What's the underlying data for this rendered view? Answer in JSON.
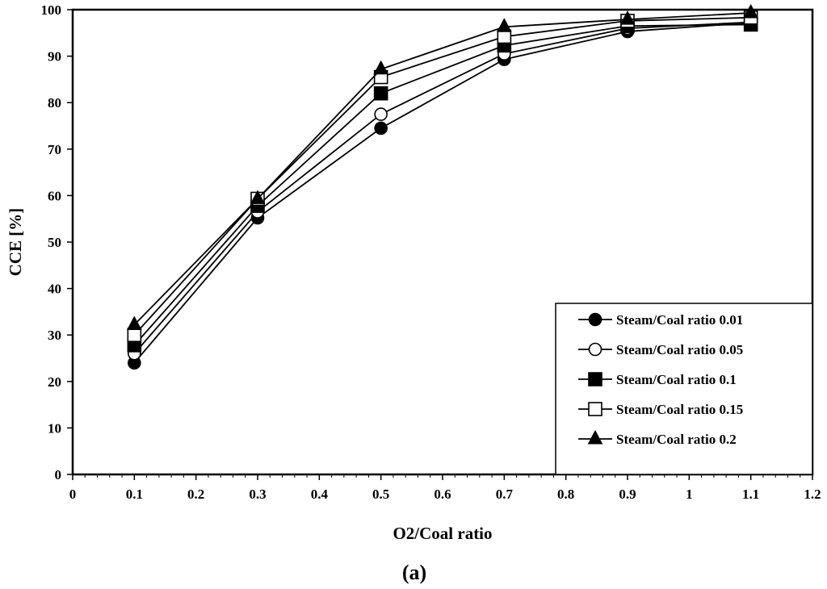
{
  "chart_data": {
    "type": "line",
    "title": "",
    "xlabel": "O2/Coal ratio",
    "ylabel": "CCE  [%]",
    "caption": "(a)",
    "xlim": [
      0,
      1.2
    ],
    "ylim": [
      0,
      100
    ],
    "x_ticks": [
      "0",
      "0.1",
      "0.2",
      "0.3",
      "0.4",
      "0.5",
      "0.6",
      "0.7",
      "0.8",
      "0.9",
      "1",
      "1.1",
      "1.2"
    ],
    "y_ticks": [
      "0",
      "10",
      "20",
      "30",
      "40",
      "50",
      "60",
      "70",
      "80",
      "90",
      "100"
    ],
    "grid": false,
    "legend_position": "bottom-right",
    "x": [
      0.1,
      0.3,
      0.5,
      0.7,
      0.9,
      1.1
    ],
    "series": [
      {
        "name": "Steam/Coal ratio 0.01",
        "marker": "circle-filled",
        "values": [
          24.0,
          55.2,
          74.5,
          89.3,
          95.3,
          97.2
        ]
      },
      {
        "name": "Steam/Coal ratio 0.05",
        "marker": "circle-open",
        "values": [
          26.0,
          56.5,
          77.5,
          90.5,
          96.0,
          97.3
        ]
      },
      {
        "name": "Steam/Coal ratio 0.1",
        "marker": "square-filled",
        "values": [
          27.8,
          57.8,
          82.0,
          92.3,
          96.5,
          96.8
        ]
      },
      {
        "name": "Steam/Coal ratio 0.15",
        "marker": "square-open",
        "values": [
          30.0,
          59.3,
          85.5,
          94.2,
          97.6,
          98.3
        ]
      },
      {
        "name": "Steam/Coal ratio 0.2",
        "marker": "triangle-filled",
        "values": [
          32.2,
          59.3,
          87.2,
          96.3,
          97.9,
          99.3
        ]
      }
    ]
  }
}
